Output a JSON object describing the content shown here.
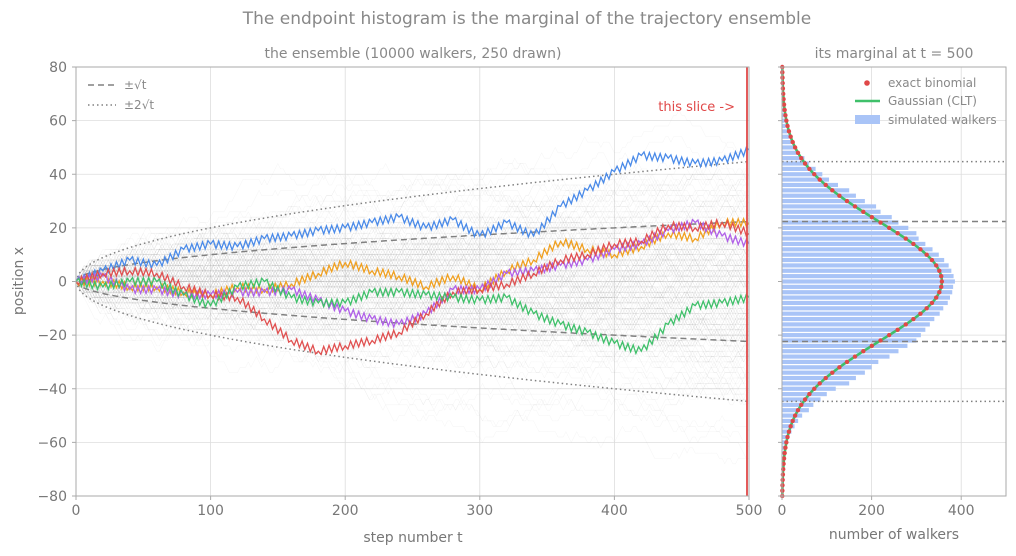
{
  "figure": {
    "suptitle": "The endpoint histogram is the marginal of the trajectory ensemble"
  },
  "colors": {
    "text": "#777777",
    "grid": "#dddddd",
    "axis": "#aaaaaa",
    "ensemble_line": "#b8b8b8",
    "envelope": "#808080",
    "slice": "#e04848",
    "histogram": "#a9c4f7",
    "gaussian": "#3fc06a",
    "binomial": "#e04848"
  },
  "chart_data": [
    {
      "type": "line",
      "title": "the ensemble  (10000 walkers, 250 drawn)",
      "xlabel": "step number  t",
      "ylabel": "position  x",
      "xlim": [
        0,
        500
      ],
      "ylim": [
        -80,
        80
      ],
      "xticks": [
        0,
        100,
        200,
        300,
        400,
        500
      ],
      "yticks": [
        -80,
        -60,
        -40,
        -20,
        0,
        20,
        40,
        60,
        80
      ],
      "grid": true,
      "legend_position": "top-left",
      "legend": [
        {
          "label": "±√t",
          "style": "dashed"
        },
        {
          "label": "±2√t",
          "style": "dotted"
        }
      ],
      "annotation": {
        "text": "this slice ->",
        "x": 500,
        "color": "#e04848"
      },
      "background_walkers": 250,
      "highlighted_series": [
        {
          "color": "#4a8ae8",
          "x": [
            0,
            20,
            40,
            60,
            80,
            100,
            120,
            140,
            160,
            180,
            200,
            220,
            240,
            260,
            280,
            300,
            320,
            340,
            360,
            380,
            400,
            420,
            440,
            460,
            480,
            500
          ],
          "values": [
            0,
            4,
            8,
            6,
            12,
            14,
            13,
            16,
            17,
            19,
            20,
            22,
            24,
            20,
            23,
            17,
            22,
            17,
            28,
            34,
            41,
            47,
            46,
            44,
            45,
            49
          ]
        },
        {
          "color": "#f0a020",
          "x": [
            0,
            20,
            40,
            60,
            80,
            100,
            120,
            140,
            160,
            180,
            200,
            220,
            240,
            260,
            280,
            300,
            320,
            340,
            360,
            380,
            400,
            420,
            440,
            460,
            480,
            500
          ],
          "values": [
            0,
            0,
            -2,
            -2,
            -4,
            -5,
            -2,
            -3,
            -1,
            3,
            7,
            4,
            2,
            -2,
            2,
            -3,
            4,
            8,
            15,
            12,
            10,
            13,
            18,
            16,
            22,
            22
          ]
        },
        {
          "color": "#b060e8",
          "x": [
            0,
            20,
            40,
            60,
            80,
            100,
            120,
            140,
            160,
            180,
            200,
            220,
            240,
            260,
            280,
            300,
            320,
            340,
            360,
            380,
            400,
            420,
            440,
            460,
            480,
            500
          ],
          "values": [
            0,
            2,
            -3,
            -3,
            -5,
            -5,
            -4,
            -4,
            -3,
            -7,
            -11,
            -14,
            -16,
            -12,
            -3,
            -3,
            3,
            4,
            6,
            8,
            12,
            14,
            19,
            22,
            17,
            14
          ]
        },
        {
          "color": "#e05050",
          "x": [
            0,
            20,
            40,
            60,
            80,
            100,
            120,
            140,
            160,
            180,
            200,
            220,
            240,
            260,
            280,
            300,
            320,
            340,
            360,
            380,
            400,
            420,
            440,
            460,
            480,
            500
          ],
          "values": [
            0,
            3,
            4,
            3,
            -2,
            -5,
            -6,
            -14,
            -22,
            -26,
            -24,
            -22,
            -19,
            -12,
            -4,
            -3,
            -1,
            3,
            8,
            10,
            14,
            15,
            21,
            20,
            22,
            18
          ]
        },
        {
          "color": "#3fc06a",
          "x": [
            0,
            20,
            40,
            60,
            80,
            100,
            120,
            140,
            160,
            180,
            200,
            220,
            240,
            260,
            280,
            300,
            320,
            340,
            360,
            380,
            400,
            420,
            440,
            460,
            480,
            500
          ],
          "values": [
            0,
            -2,
            0,
            0,
            -5,
            -9,
            -2,
            0,
            -6,
            -8,
            -8,
            -4,
            -4,
            -5,
            -6,
            -7,
            -6,
            -12,
            -16,
            -19,
            -23,
            -26,
            -16,
            -9,
            -8,
            -6
          ]
        }
      ]
    },
    {
      "type": "bar",
      "orientation": "horizontal",
      "title": "its marginal at  t = 500",
      "xlabel": "number of walkers",
      "xlim": [
        0,
        500
      ],
      "ylim": [
        -80,
        80
      ],
      "xticks": [
        0,
        200,
        400
      ],
      "grid": true,
      "legend_position": "top-right",
      "legend": [
        {
          "label": "exact binomial",
          "kind": "dot"
        },
        {
          "label": "Gaussian (CLT)",
          "kind": "line"
        },
        {
          "label": "simulated walkers",
          "kind": "bar"
        }
      ],
      "sigma": 22.36,
      "histogram": {
        "bin_width": 2,
        "x": [
          -78,
          -76,
          -74,
          -72,
          -70,
          -68,
          -66,
          -64,
          -62,
          -60,
          -58,
          -56,
          -54,
          -52,
          -50,
          -48,
          -46,
          -44,
          -42,
          -40,
          -38,
          -36,
          -34,
          -32,
          -30,
          -28,
          -26,
          -24,
          -22,
          -20,
          -18,
          -16,
          -14,
          -12,
          -10,
          -8,
          -6,
          -4,
          -2,
          0,
          2,
          4,
          6,
          8,
          10,
          12,
          14,
          16,
          18,
          20,
          22,
          24,
          26,
          28,
          30,
          32,
          34,
          36,
          38,
          40,
          42,
          44,
          46,
          48,
          50,
          52,
          54,
          56,
          58,
          60,
          62,
          64,
          66,
          68,
          70,
          72,
          74,
          76,
          78
        ],
        "values": [
          0,
          1,
          1,
          2,
          3,
          4,
          5,
          6,
          9,
          12,
          16,
          21,
          28,
          36,
          45,
          60,
          70,
          86,
          100,
          120,
          150,
          165,
          185,
          200,
          215,
          240,
          260,
          280,
          300,
          310,
          320,
          330,
          340,
          352,
          360,
          370,
          375,
          380,
          382,
          386,
          383,
          378,
          372,
          362,
          350,
          336,
          320,
          305,
          300,
          282,
          260,
          245,
          220,
          210,
          185,
          165,
          150,
          125,
          105,
          90,
          75,
          60,
          50,
          36,
          28,
          20,
          16,
          12,
          8,
          6,
          5,
          4,
          3,
          2,
          2,
          1,
          1,
          0,
          0
        ]
      },
      "reference_lines": [
        {
          "y": 22.36,
          "style": "dashed"
        },
        {
          "y": -22.36,
          "style": "dashed"
        },
        {
          "y": 44.72,
          "style": "dotted"
        },
        {
          "y": -44.72,
          "style": "dotted"
        }
      ]
    }
  ]
}
